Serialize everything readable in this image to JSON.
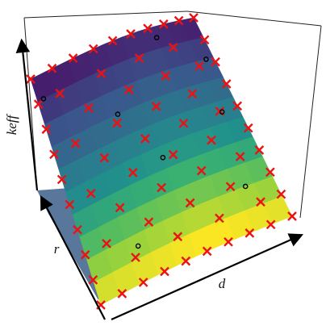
{
  "chart_data": {
    "type": "surface",
    "xlabel": "d",
    "ylabel": "r",
    "zlabel": "keff"
  }
}
